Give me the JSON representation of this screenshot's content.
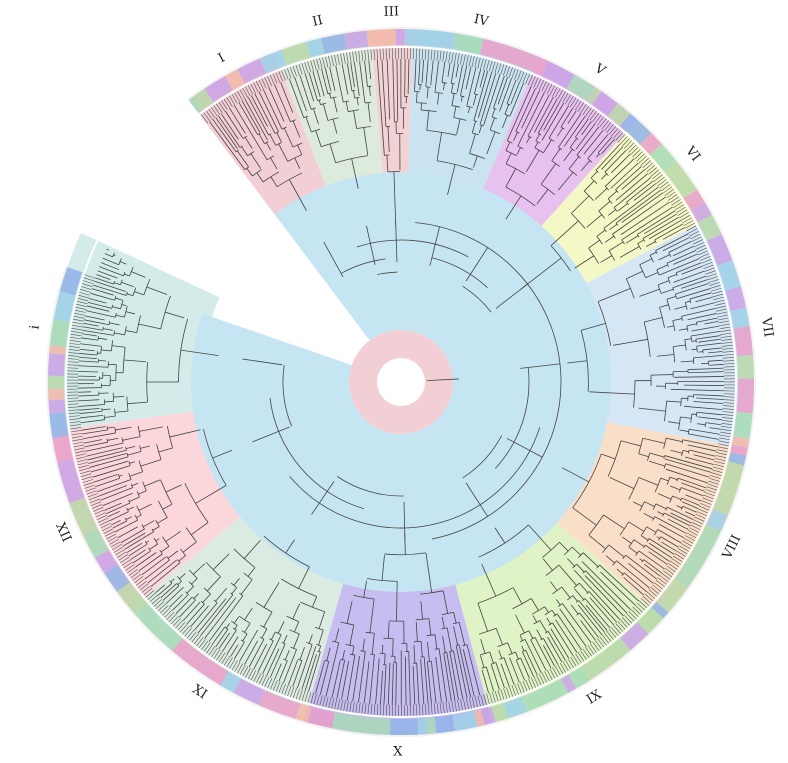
{
  "figure": {
    "type": "circular-phylogenetic-tree",
    "clades": [
      {
        "id": "I",
        "label": "I",
        "start_deg": -127,
        "end_deg": -111,
        "color": "#f2cfd4"
      },
      {
        "id": "II",
        "label": "II",
        "start_deg": -111,
        "end_deg": -95,
        "color": "#dcebdc"
      },
      {
        "id": "III",
        "label": "III",
        "start_deg": -95,
        "end_deg": -88,
        "color": "#f3d2d6"
      },
      {
        "id": "IV",
        "label": "IV",
        "start_deg": -88,
        "end_deg": -67,
        "color": "#c9e3f0"
      },
      {
        "id": "V",
        "label": "V",
        "start_deg": -67,
        "end_deg": -48,
        "color": "#e8c2ee"
      },
      {
        "id": "VI",
        "label": "VI",
        "start_deg": -48,
        "end_deg": -28,
        "color": "#f4f7c6"
      },
      {
        "id": "VII",
        "label": "VII",
        "start_deg": -28,
        "end_deg": 11,
        "color": "#d5e6f5"
      },
      {
        "id": "VIII",
        "label": "VIII",
        "start_deg": 11,
        "end_deg": 42,
        "color": "#fadfc8"
      },
      {
        "id": "IX",
        "label": "IX",
        "start_deg": 42,
        "end_deg": 75,
        "color": "#dff3c7"
      },
      {
        "id": "X",
        "label": "X",
        "start_deg": 75,
        "end_deg": 106,
        "color": "#c8bdf0"
      },
      {
        "id": "XI",
        "label": "XI",
        "start_deg": 106,
        "end_deg": 140,
        "color": "#dcebe1"
      },
      {
        "id": "XII",
        "label": "XII",
        "start_deg": 140,
        "end_deg": 172,
        "color": "#fbd7dc"
      },
      {
        "id": "i",
        "label": "i",
        "start_deg": 172,
        "end_deg": 205,
        "color": "#d3ece9"
      }
    ],
    "background_colors": {
      "inner_core": "#c6e5f3",
      "inner_pink": "#f2cfd4",
      "outer_ring": "#f2f2f2"
    },
    "tip_band_colors": [
      "#8fb3e6",
      "#b7d7a8",
      "#e79ec8",
      "#c9a1e6",
      "#9ccfe6",
      "#f2b7a6",
      "#a6d9b5"
    ],
    "gap": {
      "start_deg": -161,
      "end_deg": -127
    }
  }
}
